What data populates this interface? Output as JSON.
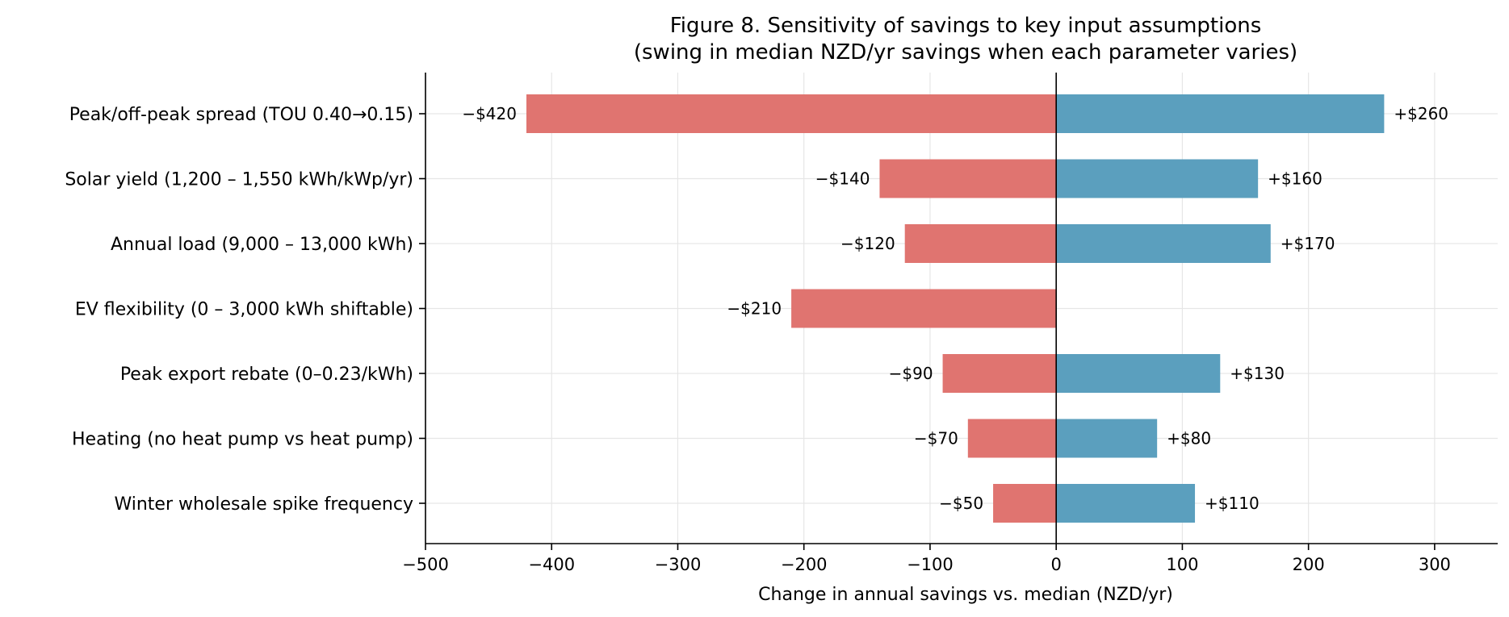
{
  "chart_data": {
    "type": "bar",
    "orientation": "horizontal",
    "title": "Figure 8. Sensitivity of savings to key input assumptions",
    "subtitle": "(swing in median NZD/yr savings when each parameter varies)",
    "xlabel": "Change in annual savings vs. median (NZD/yr)",
    "ylabel": "",
    "xlim": [
      -500,
      350
    ],
    "xticks": [
      -500,
      -400,
      -300,
      -200,
      -100,
      0,
      100,
      200,
      300
    ],
    "xtick_labels": [
      "−500",
      "−400",
      "−300",
      "−200",
      "−100",
      "0",
      "100",
      "200",
      "300"
    ],
    "grid": true,
    "categories": [
      "Peak/off-peak spread (TOU 0.40→0.15)",
      "Solar yield (1,200 – 1,550 kWh/kWp/yr)",
      "Annual load (9,000 – 13,000 kWh)",
      "EV flexibility (0 – 3,000 kWh shiftable)",
      "Peak export rebate (0–0.23/kWh)",
      "Heating (no heat pump vs heat pump)",
      "Winter wholesale spike frequency"
    ],
    "series": [
      {
        "color": "#e07470",
        "values": [
          -420,
          -140,
          -120,
          -210,
          -90,
          -70,
          -50
        ],
        "labels": [
          "−$420",
          "−$140",
          "−$120",
          "−$210",
          "−$90",
          "−$70",
          "−$50"
        ]
      },
      {
        "color": "#5b9fbe",
        "values": [
          260,
          160,
          170,
          0,
          130,
          80,
          110
        ],
        "labels": [
          "+$260",
          "+$160",
          "+$170",
          "",
          "+$130",
          "+$80",
          "+$110"
        ]
      }
    ]
  }
}
